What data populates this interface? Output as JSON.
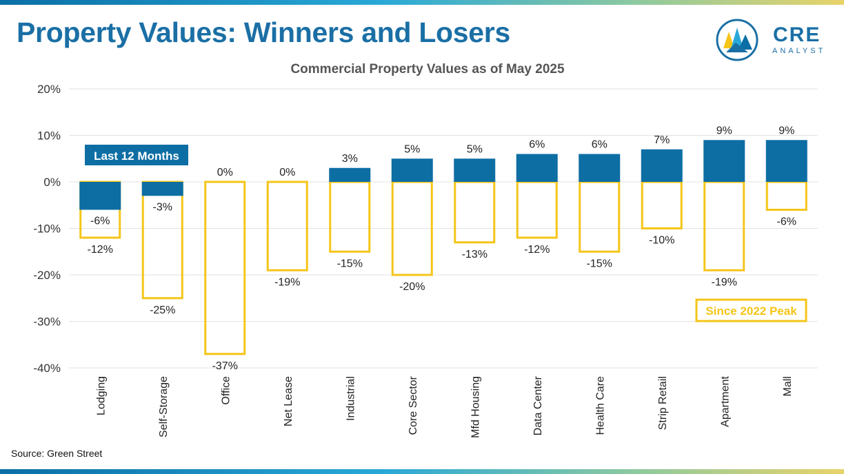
{
  "header": {
    "title": "Property Values: Winners and Losers",
    "logo_text": "CRE",
    "logo_subtext": "ANALYST"
  },
  "footer": {
    "source": "Source: Green Street"
  },
  "colors": {
    "accent": "#1a6fa5",
    "last12_fill": "#0d6ea4",
    "peak_outline": "#f5c518"
  },
  "chart_data": {
    "type": "bar",
    "title": "Commercial Property Values as of May 2025",
    "categories": [
      "Lodging",
      "Self-Storage",
      "Office",
      "Net Lease",
      "Industrial",
      "Core Sector",
      "Mfd Housing",
      "Data Center",
      "Health Care",
      "Strip Retail",
      "Apartment",
      "Mall"
    ],
    "series": [
      {
        "name": "Last 12 Months",
        "values": [
          -6,
          -3,
          0,
          0,
          3,
          5,
          5,
          6,
          6,
          7,
          9,
          9
        ]
      },
      {
        "name": "Since 2022 Peak",
        "values": [
          -12,
          -25,
          -37,
          -19,
          -15,
          -20,
          -13,
          -12,
          -15,
          -10,
          -19,
          -6
        ]
      }
    ],
    "ylim": [
      -40,
      20
    ],
    "yticks": [
      "20%",
      "10%",
      "0%",
      "-10%",
      "-20%",
      "-30%",
      "-40%"
    ],
    "grid": true,
    "legend_placement": "Last 12 Months label top-left; Since 2022 Peak label bottom-right"
  }
}
